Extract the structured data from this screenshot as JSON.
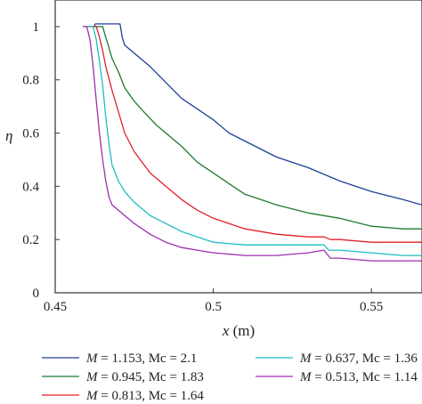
{
  "chart_data": {
    "type": "line",
    "title": "",
    "xlabel_var": "x",
    "xlabel_unit": " (m)",
    "ylabel": "η",
    "xlim": [
      0.45,
      0.566
    ],
    "ylim": [
      0,
      1.1
    ],
    "xticks": [
      0.45,
      0.5,
      0.55
    ],
    "xtick_labels": [
      "0.45",
      "0.5",
      "0.55"
    ],
    "yticks": [
      0,
      0.2,
      0.4,
      0.6,
      0.8,
      1.0
    ],
    "ytick_labels": [
      "0",
      "0.2",
      "0.4",
      "0.6",
      "0.8",
      "1"
    ],
    "grid": false,
    "legend_position": "bottom",
    "series": [
      {
        "name": "M = 1.153, Mc = 2.1",
        "label_var": "M",
        "label_rest": " = 1.153, Mc = 2.1",
        "color": "#1f3f99",
        "x": [
          0.4587,
          0.4623,
          0.4627,
          0.4648,
          0.4655,
          0.4677,
          0.4705,
          0.4712,
          0.472,
          0.476,
          0.48,
          0.485,
          0.49,
          0.495,
          0.5,
          0.505,
          0.51,
          0.52,
          0.53,
          0.54,
          0.55,
          0.56,
          0.566
        ],
        "y": [
          1.0,
          1.0,
          1.01,
          1.01,
          1.01,
          1.01,
          1.01,
          0.96,
          0.93,
          0.89,
          0.85,
          0.79,
          0.73,
          0.69,
          0.65,
          0.6,
          0.57,
          0.51,
          0.47,
          0.42,
          0.38,
          0.35,
          0.33
        ]
      },
      {
        "name": "M = 0.945, Mc = 1.83",
        "label_var": "M",
        "label_rest": " = 0.945, Mc = 1.83",
        "color": "#1f7a2e",
        "x": [
          0.461,
          0.465,
          0.466,
          0.467,
          0.468,
          0.47,
          0.472,
          0.475,
          0.478,
          0.482,
          0.485,
          0.49,
          0.495,
          0.5,
          0.505,
          0.51,
          0.52,
          0.53,
          0.54,
          0.55,
          0.56,
          0.566
        ],
        "y": [
          1.0,
          1.0,
          0.96,
          0.92,
          0.88,
          0.83,
          0.77,
          0.72,
          0.68,
          0.63,
          0.6,
          0.55,
          0.49,
          0.45,
          0.41,
          0.37,
          0.33,
          0.3,
          0.28,
          0.25,
          0.24,
          0.24
        ]
      },
      {
        "name": "M = 0.813, Mc = 1.64",
        "label_var": "M",
        "label_rest": " = 0.813, Mc = 1.64",
        "color": "#e31f2a",
        "x": [
          0.46,
          0.463,
          0.464,
          0.465,
          0.466,
          0.468,
          0.47,
          0.472,
          0.475,
          0.48,
          0.485,
          0.49,
          0.495,
          0.5,
          0.505,
          0.51,
          0.52,
          0.53,
          0.535,
          0.537,
          0.54,
          0.55,
          0.56,
          0.566
        ],
        "y": [
          1.0,
          1.0,
          0.96,
          0.91,
          0.85,
          0.76,
          0.68,
          0.6,
          0.53,
          0.45,
          0.4,
          0.35,
          0.31,
          0.28,
          0.26,
          0.24,
          0.22,
          0.21,
          0.21,
          0.2,
          0.2,
          0.19,
          0.19,
          0.19
        ]
      },
      {
        "name": "M = 0.637, Mc = 1.36",
        "label_var": "M",
        "label_rest": " = 0.637, Mc = 1.36",
        "color": "#1bbfc2",
        "x": [
          0.46,
          0.462,
          0.463,
          0.464,
          0.465,
          0.466,
          0.467,
          0.468,
          0.47,
          0.472,
          0.475,
          0.48,
          0.485,
          0.49,
          0.495,
          0.5,
          0.51,
          0.52,
          0.53,
          0.535,
          0.5365,
          0.54,
          0.55,
          0.56,
          0.566
        ],
        "y": [
          1.0,
          1.0,
          0.95,
          0.87,
          0.78,
          0.66,
          0.56,
          0.48,
          0.42,
          0.38,
          0.34,
          0.29,
          0.26,
          0.23,
          0.21,
          0.19,
          0.18,
          0.18,
          0.18,
          0.18,
          0.16,
          0.16,
          0.15,
          0.14,
          0.14
        ]
      },
      {
        "name": "M = 0.513, Mc = 1.14",
        "label_var": "M",
        "label_rest": " = 0.513, Mc = 1.14",
        "color": "#9b2fae",
        "x": [
          0.459,
          0.46,
          0.461,
          0.462,
          0.463,
          0.464,
          0.465,
          0.466,
          0.467,
          0.468,
          0.47,
          0.472,
          0.475,
          0.48,
          0.485,
          0.49,
          0.495,
          0.5,
          0.51,
          0.52,
          0.53,
          0.535,
          0.537,
          0.54,
          0.55,
          0.56,
          0.566
        ],
        "y": [
          1.0,
          1.0,
          0.95,
          0.85,
          0.72,
          0.6,
          0.5,
          0.42,
          0.36,
          0.33,
          0.31,
          0.29,
          0.26,
          0.22,
          0.19,
          0.17,
          0.16,
          0.15,
          0.14,
          0.14,
          0.15,
          0.16,
          0.13,
          0.13,
          0.12,
          0.12,
          0.12
        ]
      }
    ]
  }
}
